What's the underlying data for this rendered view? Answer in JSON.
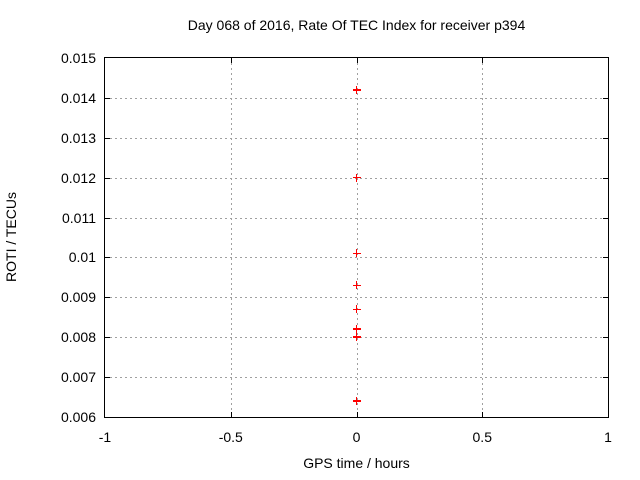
{
  "chart_data": {
    "type": "scatter",
    "title": "Day 068 of 2016, Rate Of TEC Index for receiver p394",
    "xlabel": "GPS time / hours",
    "ylabel": "ROTI / TECUs",
    "xlim": [
      -1,
      1
    ],
    "ylim": [
      0.006,
      0.015
    ],
    "xticks": [
      -1,
      -0.5,
      0,
      0.5,
      1
    ],
    "xtick_labels": [
      "-1",
      "-0.5",
      "0",
      "0.5",
      "1"
    ],
    "yticks": [
      0.006,
      0.007,
      0.008,
      0.009,
      0.01,
      0.011,
      0.012,
      0.013,
      0.014,
      0.015
    ],
    "ytick_labels": [
      "0.006",
      "0.007",
      "0.008",
      "0.009",
      "0.01",
      "0.011",
      "0.012",
      "0.013",
      "0.014",
      "0.015"
    ],
    "grid": true,
    "legend": "none",
    "marker": "plus",
    "series": [
      {
        "name": "ROTI",
        "x": [
          0,
          0,
          0,
          0,
          0,
          0,
          0,
          0
        ],
        "y": [
          0.0142,
          0.012,
          0.0101,
          0.0093,
          0.0087,
          0.0082,
          0.008,
          0.0064
        ]
      }
    ],
    "colors": {
      "marker": "#ff0000",
      "grid": "#a0a0a0",
      "border": "#000000",
      "background": "#ffffff",
      "text": "#000000"
    }
  }
}
